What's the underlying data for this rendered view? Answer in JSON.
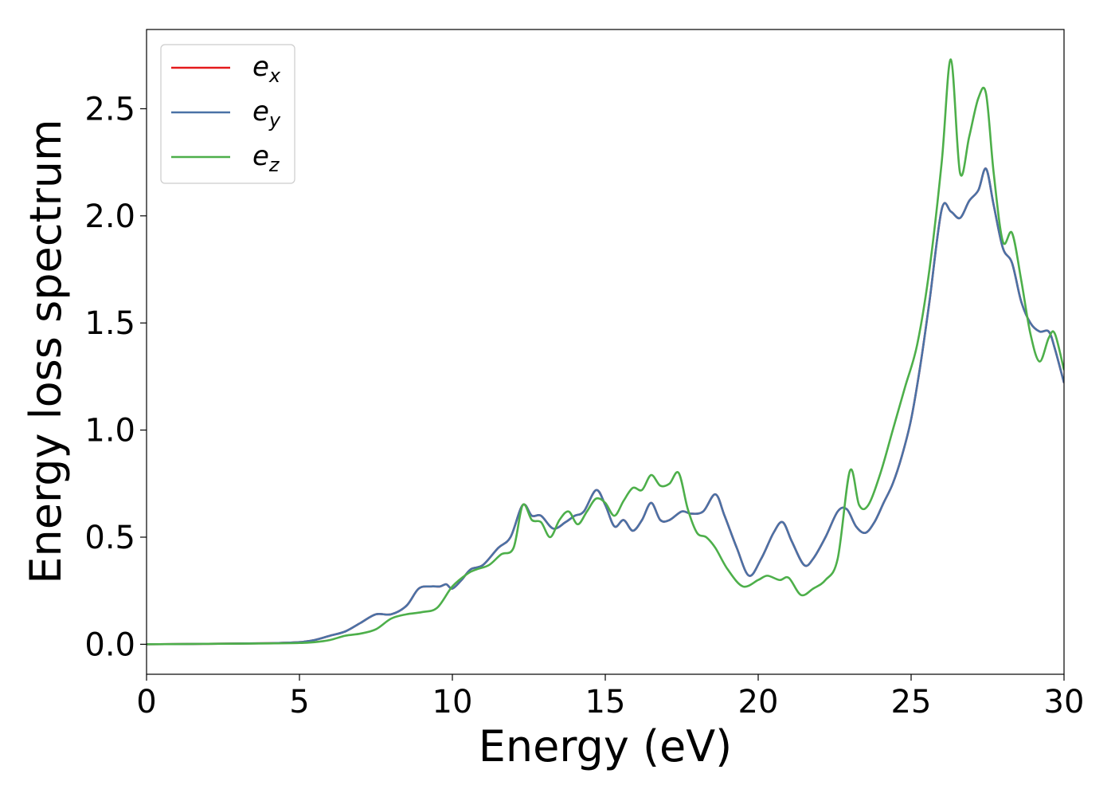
{
  "chart_data": {
    "type": "line",
    "xlabel": "Energy (eV)",
    "ylabel": "Energy loss spectrum",
    "xlim": [
      0,
      30
    ],
    "ylim": [
      -0.14,
      2.87
    ],
    "xticks": [
      "0",
      "5",
      "10",
      "15",
      "20",
      "25",
      "30"
    ],
    "yticks": [
      "0.0",
      "0.5",
      "1.0",
      "1.5",
      "2.0",
      "2.5"
    ],
    "grid": false,
    "legend_position": "top-left",
    "series": [
      {
        "name": "e_x",
        "legend_base": "e",
        "legend_sub": "x",
        "color": "#e41a1c",
        "x": [
          0,
          2,
          4,
          5,
          5.5,
          6,
          6.5,
          7,
          7.5,
          8,
          8.5,
          8.9,
          9.3,
          9.6,
          9.8,
          10,
          10.3,
          10.6,
          11,
          11.5,
          11.9,
          12.3,
          12.6,
          12.9,
          13.3,
          13.7,
          14,
          14.3,
          14.7,
          15,
          15.3,
          15.6,
          15.9,
          16.2,
          16.5,
          16.8,
          17.1,
          17.5,
          17.8,
          18.2,
          18.6,
          18.9,
          19.3,
          19.7,
          20.1,
          20.5,
          20.8,
          21.1,
          21.5,
          21.8,
          22.2,
          22.6,
          22.9,
          23.2,
          23.5,
          23.8,
          24.1,
          24.4,
          24.7,
          25,
          25.3,
          25.6,
          26,
          26.3,
          26.6,
          26.9,
          27.2,
          27.45,
          27.7,
          28,
          28.3,
          28.6,
          28.9,
          29.2,
          29.5,
          29.7,
          30
        ],
        "y": [
          0,
          0.002,
          0.005,
          0.01,
          0.02,
          0.04,
          0.06,
          0.1,
          0.14,
          0.14,
          0.18,
          0.26,
          0.27,
          0.27,
          0.28,
          0.26,
          0.3,
          0.35,
          0.37,
          0.45,
          0.5,
          0.65,
          0.6,
          0.6,
          0.54,
          0.57,
          0.6,
          0.62,
          0.72,
          0.65,
          0.55,
          0.58,
          0.53,
          0.58,
          0.66,
          0.58,
          0.58,
          0.62,
          0.61,
          0.62,
          0.7,
          0.6,
          0.45,
          0.32,
          0.4,
          0.52,
          0.57,
          0.48,
          0.37,
          0.4,
          0.5,
          0.62,
          0.63,
          0.55,
          0.52,
          0.57,
          0.66,
          0.75,
          0.88,
          1.05,
          1.3,
          1.6,
          2.03,
          2.02,
          1.99,
          2.07,
          2.12,
          2.22,
          2.05,
          1.85,
          1.78,
          1.6,
          1.5,
          1.46,
          1.46,
          1.38,
          1.22
        ]
      },
      {
        "name": "e_y",
        "legend_base": "e",
        "legend_sub": "y",
        "color": "#4a72a6",
        "x": [
          0,
          2,
          4,
          5,
          5.5,
          6,
          6.5,
          7,
          7.5,
          8,
          8.5,
          8.9,
          9.3,
          9.6,
          9.8,
          10,
          10.3,
          10.6,
          11,
          11.5,
          11.9,
          12.3,
          12.6,
          12.9,
          13.3,
          13.7,
          14,
          14.3,
          14.7,
          15,
          15.3,
          15.6,
          15.9,
          16.2,
          16.5,
          16.8,
          17.1,
          17.5,
          17.8,
          18.2,
          18.6,
          18.9,
          19.3,
          19.7,
          20.1,
          20.5,
          20.8,
          21.1,
          21.5,
          21.8,
          22.2,
          22.6,
          22.9,
          23.2,
          23.5,
          23.8,
          24.1,
          24.4,
          24.7,
          25,
          25.3,
          25.6,
          26,
          26.3,
          26.6,
          26.9,
          27.2,
          27.45,
          27.7,
          28,
          28.3,
          28.6,
          28.9,
          29.2,
          29.5,
          29.7,
          30
        ],
        "y": [
          0,
          0.002,
          0.005,
          0.01,
          0.02,
          0.04,
          0.06,
          0.1,
          0.14,
          0.14,
          0.18,
          0.26,
          0.27,
          0.27,
          0.28,
          0.26,
          0.3,
          0.35,
          0.37,
          0.45,
          0.5,
          0.65,
          0.6,
          0.6,
          0.54,
          0.57,
          0.6,
          0.62,
          0.72,
          0.65,
          0.55,
          0.58,
          0.53,
          0.58,
          0.66,
          0.58,
          0.58,
          0.62,
          0.61,
          0.62,
          0.7,
          0.6,
          0.45,
          0.32,
          0.4,
          0.52,
          0.57,
          0.48,
          0.37,
          0.4,
          0.5,
          0.62,
          0.63,
          0.55,
          0.52,
          0.57,
          0.66,
          0.75,
          0.88,
          1.05,
          1.3,
          1.6,
          2.03,
          2.02,
          1.99,
          2.07,
          2.12,
          2.22,
          2.05,
          1.85,
          1.78,
          1.6,
          1.5,
          1.46,
          1.46,
          1.38,
          1.22
        ]
      },
      {
        "name": "e_z",
        "legend_base": "e",
        "legend_sub": "z",
        "color": "#4daf4a",
        "x": [
          0,
          2,
          4,
          5,
          5.5,
          6,
          6.5,
          7,
          7.5,
          8,
          8.5,
          9,
          9.5,
          10,
          10.5,
          10.8,
          11.2,
          11.6,
          12,
          12.3,
          12.6,
          12.9,
          13.2,
          13.5,
          13.8,
          14.1,
          14.4,
          14.7,
          15,
          15.3,
          15.6,
          15.9,
          16.2,
          16.5,
          16.8,
          17.1,
          17.4,
          17.7,
          18,
          18.3,
          18.6,
          19,
          19.5,
          20,
          20.3,
          20.7,
          21,
          21.4,
          21.8,
          22.2,
          22.6,
          23,
          23.3,
          23.6,
          24,
          24.4,
          24.8,
          25.2,
          25.6,
          26,
          26.3,
          26.6,
          26.9,
          27.2,
          27.45,
          27.7,
          28,
          28.3,
          28.6,
          28.9,
          29.2,
          29.5,
          29.7,
          30
        ],
        "y": [
          0,
          0.002,
          0.004,
          0.006,
          0.01,
          0.02,
          0.04,
          0.05,
          0.07,
          0.12,
          0.14,
          0.15,
          0.17,
          0.27,
          0.33,
          0.35,
          0.37,
          0.42,
          0.45,
          0.65,
          0.58,
          0.57,
          0.5,
          0.58,
          0.62,
          0.56,
          0.62,
          0.68,
          0.66,
          0.6,
          0.67,
          0.73,
          0.72,
          0.79,
          0.74,
          0.75,
          0.8,
          0.63,
          0.52,
          0.5,
          0.45,
          0.35,
          0.27,
          0.3,
          0.32,
          0.3,
          0.31,
          0.23,
          0.26,
          0.3,
          0.4,
          0.81,
          0.65,
          0.65,
          0.8,
          1.0,
          1.2,
          1.4,
          1.75,
          2.25,
          2.73,
          2.2,
          2.37,
          2.55,
          2.57,
          2.2,
          1.88,
          1.92,
          1.7,
          1.45,
          1.32,
          1.43,
          1.45,
          1.28
        ]
      }
    ]
  }
}
